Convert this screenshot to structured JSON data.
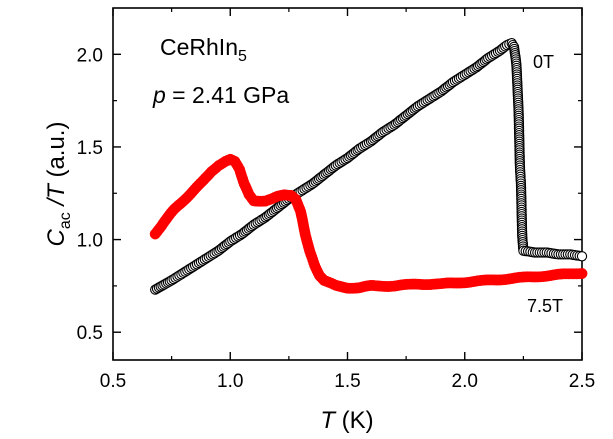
{
  "chart_data": {
    "type": "scatter",
    "title": "",
    "xlabel": {
      "main": "T",
      "unit": " (K)"
    },
    "ylabel": {
      "main": "C",
      "sub": "ac",
      "rest": " /T",
      "unit": " (a.u.)"
    },
    "xlim": [
      0.5,
      2.5
    ],
    "ylim": [
      0.35,
      2.25
    ],
    "xticks": [
      "0.5",
      "1.0",
      "1.5",
      "2.0",
      "2.5"
    ],
    "yticks": [
      "0.5",
      "1.0",
      "1.5",
      "2.0"
    ],
    "grid": false,
    "annotations": {
      "compound": {
        "main": "CeRhIn",
        "sub": "5"
      },
      "pressure": {
        "symbol": "p",
        "rest": " = 2.41 GPa"
      }
    },
    "series": [
      {
        "name": "0T",
        "marker": "open-circle",
        "color": "#000000",
        "x": [
          0.68,
          0.75,
          0.8,
          0.85,
          0.9,
          0.95,
          1.0,
          1.05,
          1.1,
          1.15,
          1.2,
          1.25,
          1.3,
          1.35,
          1.4,
          1.45,
          1.5,
          1.55,
          1.6,
          1.65,
          1.7,
          1.75,
          1.8,
          1.85,
          1.9,
          1.95,
          2.0,
          2.05,
          2.1,
          2.15,
          2.18,
          2.2,
          2.21,
          2.22,
          2.225,
          2.23,
          2.235,
          2.24,
          2.245,
          2.25,
          2.3,
          2.35,
          2.4,
          2.45,
          2.5
        ],
        "y": [
          0.73,
          0.78,
          0.82,
          0.86,
          0.9,
          0.94,
          0.99,
          1.03,
          1.08,
          1.12,
          1.17,
          1.22,
          1.26,
          1.3,
          1.35,
          1.4,
          1.44,
          1.49,
          1.53,
          1.58,
          1.62,
          1.67,
          1.72,
          1.76,
          1.8,
          1.85,
          1.89,
          1.93,
          1.98,
          2.02,
          2.05,
          2.06,
          2.04,
          1.95,
          1.82,
          1.68,
          1.4,
          1.29,
          1.02,
          0.94,
          0.93,
          0.93,
          0.92,
          0.92,
          0.91
        ]
      },
      {
        "name": "7.5T",
        "marker": "filled-circle",
        "color": "#ff0000",
        "x": [
          0.68,
          0.72,
          0.76,
          0.8,
          0.84,
          0.88,
          0.92,
          0.95,
          0.98,
          1.0,
          1.02,
          1.04,
          1.06,
          1.08,
          1.1,
          1.12,
          1.15,
          1.18,
          1.2,
          1.23,
          1.26,
          1.28,
          1.3,
          1.32,
          1.34,
          1.36,
          1.38,
          1.4,
          1.45,
          1.5,
          1.55,
          1.6,
          1.7,
          1.8,
          1.9,
          2.0,
          2.1,
          2.2,
          2.3,
          2.4,
          2.5
        ],
        "y": [
          1.03,
          1.1,
          1.16,
          1.21,
          1.26,
          1.31,
          1.37,
          1.4,
          1.42,
          1.43,
          1.42,
          1.38,
          1.3,
          1.24,
          1.21,
          1.21,
          1.21,
          1.22,
          1.23,
          1.24,
          1.24,
          1.22,
          1.15,
          1.03,
          0.93,
          0.86,
          0.81,
          0.78,
          0.75,
          0.74,
          0.74,
          0.75,
          0.75,
          0.76,
          0.76,
          0.77,
          0.78,
          0.79,
          0.8,
          0.81,
          0.82
        ]
      }
    ]
  }
}
